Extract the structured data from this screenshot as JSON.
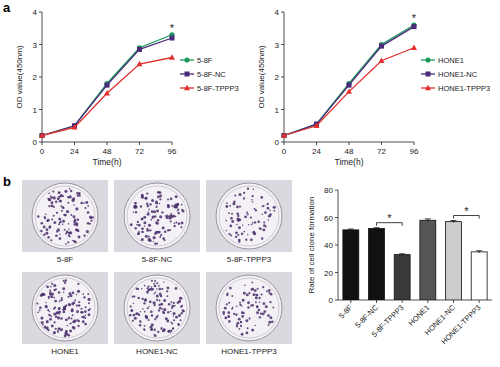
{
  "panel_labels": [
    "a",
    "b"
  ],
  "chart_data": [
    {
      "type": "line",
      "x_label": "Time(h)",
      "y_label": "OD value(450nm)",
      "x": [
        0,
        24,
        48,
        72,
        96
      ],
      "xlim": [
        0,
        96
      ],
      "xticks": [
        0,
        24,
        48,
        72,
        96
      ],
      "ylim": [
        0,
        4
      ],
      "yticks": [
        0,
        1,
        2,
        3,
        4
      ],
      "grid": false,
      "legend": "right",
      "series": [
        {
          "name": "5-8F",
          "color": "#1a9a5a",
          "marker": "circle",
          "values": [
            0.2,
            0.5,
            1.8,
            2.9,
            3.3
          ]
        },
        {
          "name": "5-8F-NC",
          "color": "#4b2a7a",
          "marker": "square",
          "values": [
            0.2,
            0.5,
            1.75,
            2.85,
            3.2
          ]
        },
        {
          "name": "5-8F-TPPP3",
          "color": "#e0302c",
          "marker": "triangle",
          "values": [
            0.2,
            0.45,
            1.5,
            2.4,
            2.6
          ]
        }
      ],
      "annotations": [
        {
          "text": "*",
          "x": 96
        }
      ]
    },
    {
      "type": "line",
      "x_label": "Time(h)",
      "y_label": "OD value(450nm)",
      "x": [
        0,
        24,
        48,
        72,
        96
      ],
      "xlim": [
        0,
        96
      ],
      "xticks": [
        0,
        24,
        48,
        72,
        96
      ],
      "ylim": [
        0,
        4
      ],
      "yticks": [
        0,
        1,
        2,
        3,
        4
      ],
      "grid": false,
      "legend": "right",
      "series": [
        {
          "name": "HONE1",
          "color": "#1a9a5a",
          "marker": "circle",
          "values": [
            0.2,
            0.55,
            1.8,
            3.0,
            3.6
          ]
        },
        {
          "name": "HONE1-NC",
          "color": "#4b2a7a",
          "marker": "square",
          "values": [
            0.2,
            0.55,
            1.75,
            2.95,
            3.55
          ]
        },
        {
          "name": "HONE1-TPPP3",
          "color": "#e0302c",
          "marker": "triangle",
          "values": [
            0.2,
            0.5,
            1.55,
            2.5,
            2.9
          ]
        }
      ],
      "annotations": [
        {
          "text": "*",
          "x": 96
        }
      ]
    },
    {
      "type": "bar",
      "y_label": "Rate of cell clone formation",
      "categories": [
        "5-8F",
        "5-8F-NC",
        "5-8F-TPPP3",
        "HONE1",
        "HONE1-NC",
        "HONE1-TPPP3"
      ],
      "values": [
        51,
        52,
        33,
        58,
        57,
        35
      ],
      "errors": [
        0.6,
        0.6,
        0.6,
        1.0,
        0.8,
        0.8
      ],
      "colors": [
        "#111111",
        "#111111",
        "#3a3a3a",
        "#555555",
        "#cccccc",
        "#ffffff"
      ],
      "ylim": [
        0,
        80
      ],
      "yticks": [
        0,
        20,
        40,
        60,
        80
      ],
      "grid": false,
      "annotations": [
        {
          "text": "*",
          "categories": [
            "5-8F-NC",
            "5-8F-TPPP3"
          ]
        },
        {
          "text": "*",
          "categories": [
            "HONE1-NC",
            "HONE1-TPPP3"
          ]
        }
      ]
    }
  ]
}
